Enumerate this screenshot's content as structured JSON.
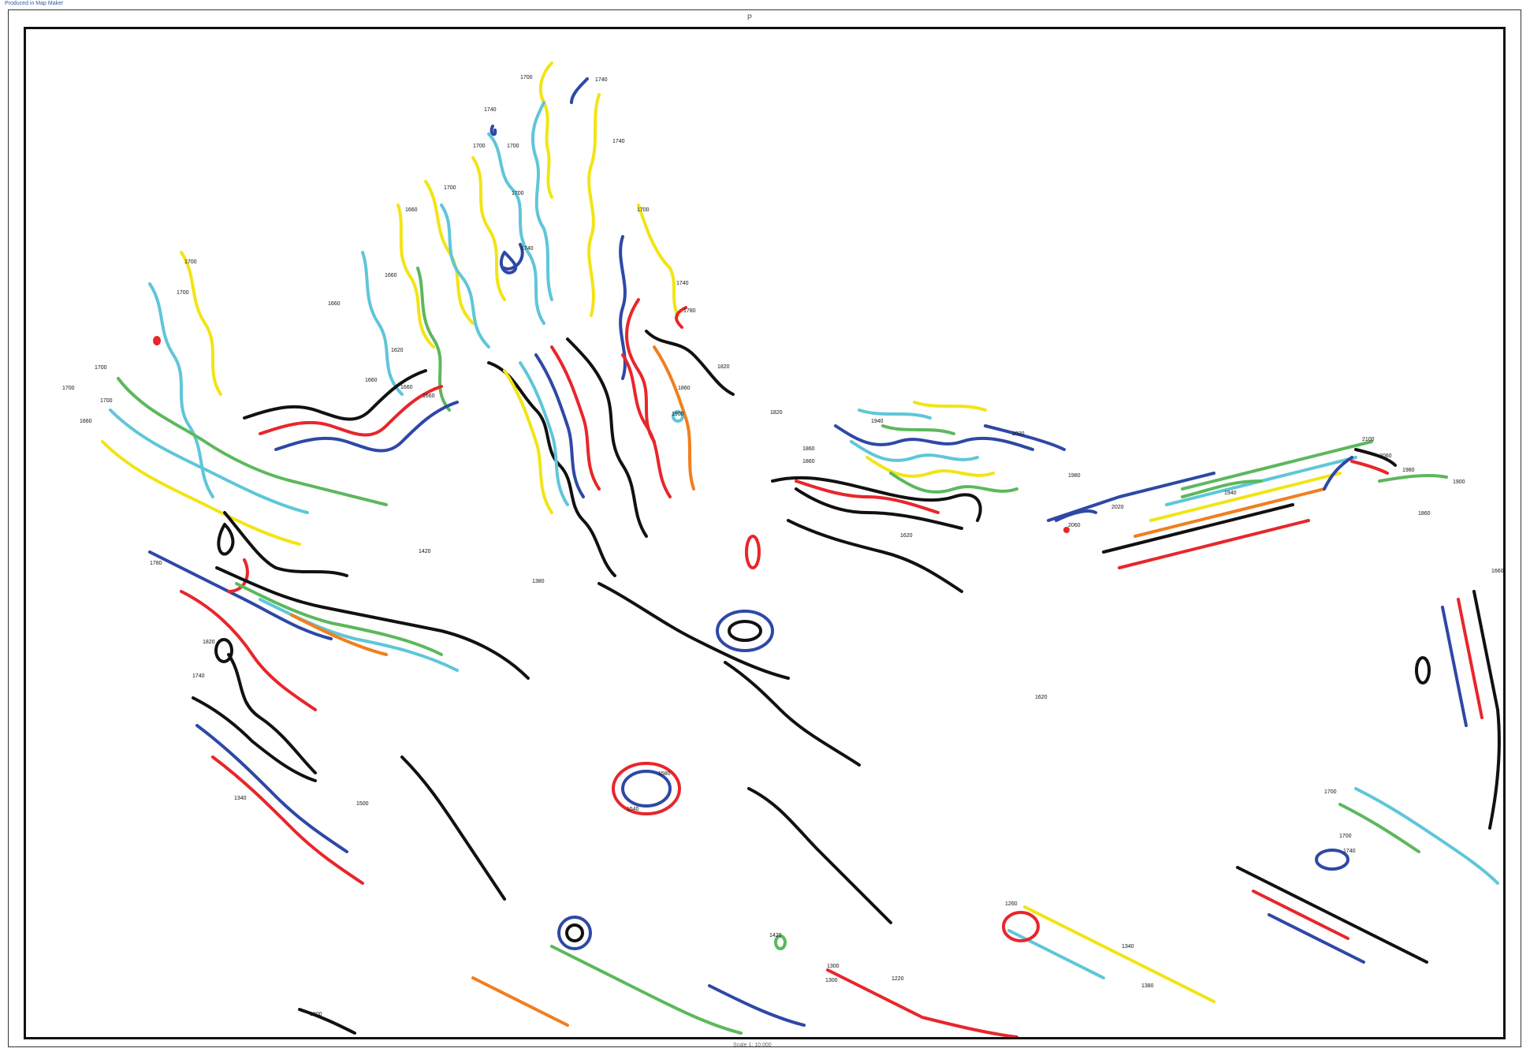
{
  "header": {
    "credit": "Produced in Map Maker",
    "sheet_letter": "P"
  },
  "footer": {
    "scale": "Scale 1: 10,000"
  },
  "colors": {
    "black": "#111111",
    "red": "#e8262b",
    "blue": "#2e48a6",
    "cyan": "#5fc6d9",
    "yellow": "#f2e415",
    "green": "#5cb85c",
    "orange": "#f07f1e"
  },
  "contour_labels": [
    "1700",
    "1740",
    "1740",
    "1700",
    "1700",
    "1740",
    "1700",
    "1700",
    "1660",
    "1700",
    "1740",
    "1660",
    "1740",
    "1780",
    "1820",
    "1660",
    "1620",
    "1700",
    "1700",
    "1700",
    "1660",
    "1660",
    "1660",
    "1700",
    "1700",
    "1660",
    "1860",
    "1900",
    "1820",
    "1940",
    "2020",
    "1860",
    "1860",
    "1980",
    "2020",
    "2060",
    "1940",
    "2100",
    "2060",
    "1980",
    "1900",
    "1860",
    "1660",
    "1820",
    "1740",
    "1780",
    "1420",
    "1380",
    "1620",
    "1340",
    "1500",
    "1580",
    "1540",
    "1420",
    "1300",
    "1300",
    "1260",
    "1220",
    "1380",
    "1700",
    "1740",
    "1700",
    "1340",
    "1300",
    "1620"
  ]
}
